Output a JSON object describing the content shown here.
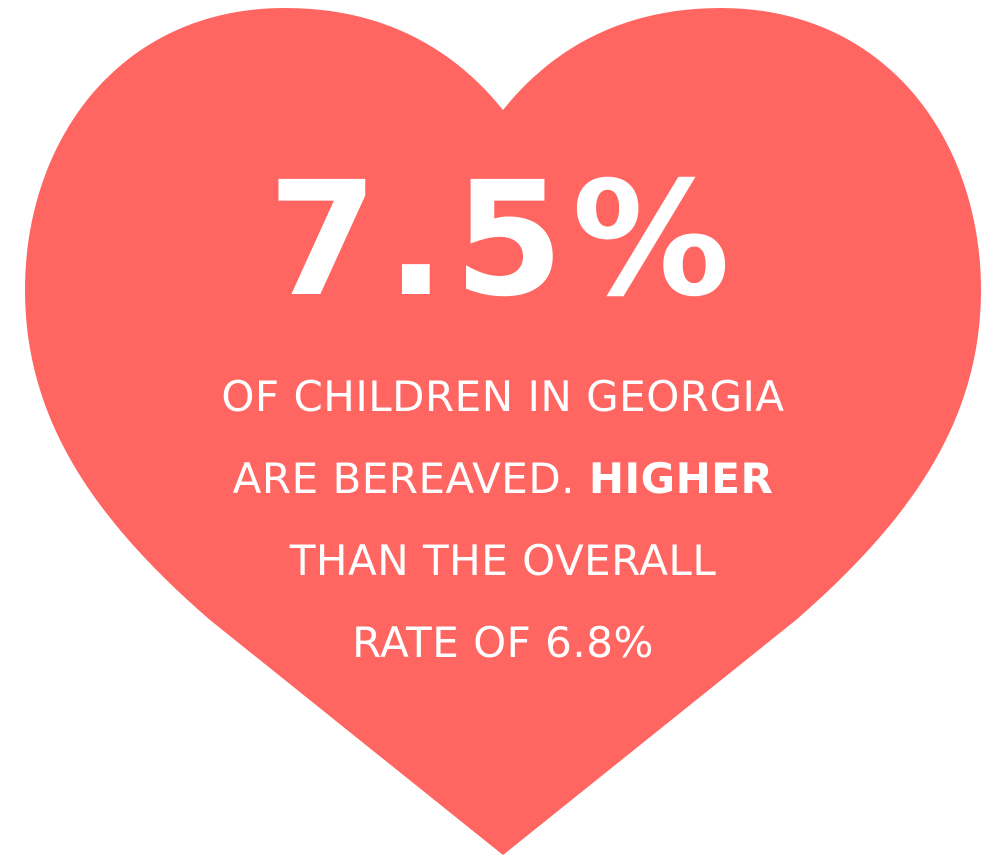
{
  "colors": {
    "heart": "#ff6661",
    "text": "#ffffff",
    "background": "#ffffff"
  },
  "heart": {
    "statistic": "7.5%",
    "caption": {
      "line1": "OF CHILDREN IN GEORGIA",
      "line2_regular": "ARE BEREAVED. ",
      "line2_bold": "HIGHER",
      "line3": "THAN THE OVERALL",
      "line4": "RATE OF 6.8%"
    }
  }
}
